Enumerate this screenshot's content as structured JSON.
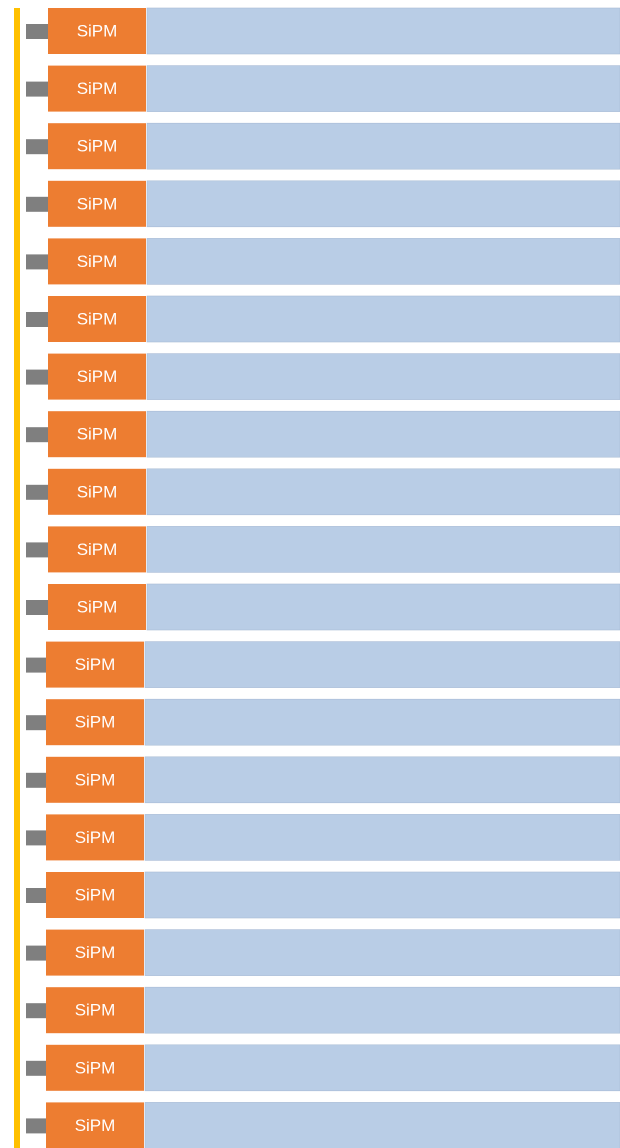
{
  "groups": [
    {
      "labels": [
        "SiPM",
        "SiPM",
        "SiPM",
        "SiPM",
        "SiPM",
        "SiPM",
        "SiPM",
        "SiPM",
        "SiPM",
        "SiPM"
      ]
    },
    {
      "labels": [
        "SiPM",
        "SiPM",
        "SiPM",
        "SiPM",
        "SiPM",
        "SiPM",
        "SiPM",
        "SiPM",
        "SiPM",
        "SiPM"
      ]
    }
  ]
}
